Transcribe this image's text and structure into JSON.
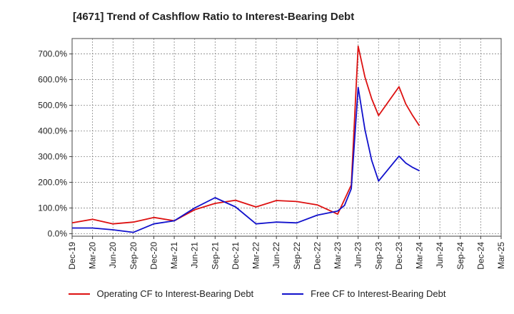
{
  "chart_data": {
    "type": "line",
    "title": "[4671]  Trend of Cashflow Ratio to Interest-Bearing Debt",
    "xlabel": "",
    "ylabel": "",
    "x_ticks": [
      "Dec-19",
      "Mar-20",
      "Jun-20",
      "Sep-20",
      "Dec-20",
      "Mar-21",
      "Jun-21",
      "Sep-21",
      "Dec-21",
      "Mar-22",
      "Jun-22",
      "Sep-22",
      "Dec-22",
      "Mar-23",
      "Jun-23",
      "Sep-23",
      "Dec-23",
      "Mar-24",
      "Jun-24",
      "Sep-24",
      "Dec-24",
      "Mar-25"
    ],
    "y_ticks": [
      "0.0%",
      "100.0%",
      "200.0%",
      "300.0%",
      "400.0%",
      "500.0%",
      "600.0%",
      "700.0%"
    ],
    "ylim": [
      -10,
      760
    ],
    "grid": true,
    "legend_position": "bottom",
    "series": [
      {
        "name": "Operating CF to Interest-Bearing Debt",
        "color": "#dd1111",
        "points": [
          [
            "Dec-19",
            42
          ],
          [
            "Mar-20",
            56
          ],
          [
            "Jun-20",
            38
          ],
          [
            "Sep-20",
            45
          ],
          [
            "Dec-20",
            63
          ],
          [
            "Mar-21",
            50
          ],
          [
            "Jun-21",
            93
          ],
          [
            "Sep-21",
            118
          ],
          [
            "Dec-21",
            130
          ],
          [
            "Mar-22",
            104
          ],
          [
            "Jun-22",
            129
          ],
          [
            "Sep-22",
            125
          ],
          [
            "Dec-22",
            112
          ],
          [
            "Mar-23",
            76
          ],
          [
            "May-23",
            190
          ],
          [
            "Jun-23",
            730
          ],
          [
            "Jul-23",
            610
          ],
          [
            "Aug-23",
            525
          ],
          [
            "Sep-23",
            460
          ],
          [
            "Dec-23",
            572
          ],
          [
            "Jan-24",
            505
          ],
          [
            "Feb-24",
            460
          ],
          [
            "Mar-24",
            420
          ]
        ]
      },
      {
        "name": "Free CF to Interest-Bearing Debt",
        "color": "#1111cc",
        "points": [
          [
            "Dec-19",
            22
          ],
          [
            "Mar-20",
            22
          ],
          [
            "Jun-20",
            15
          ],
          [
            "Sep-20",
            5
          ],
          [
            "Dec-20",
            38
          ],
          [
            "Mar-21",
            50
          ],
          [
            "Jun-21",
            100
          ],
          [
            "Sep-21",
            140
          ],
          [
            "Dec-21",
            104
          ],
          [
            "Mar-22",
            38
          ],
          [
            "Jun-22",
            45
          ],
          [
            "Sep-22",
            42
          ],
          [
            "Dec-22",
            72
          ],
          [
            "Mar-23",
            88
          ],
          [
            "Apr-23",
            110
          ],
          [
            "May-23",
            175
          ],
          [
            "Jun-23",
            570
          ],
          [
            "Jul-23",
            405
          ],
          [
            "Aug-23",
            285
          ],
          [
            "Sep-23",
            205
          ],
          [
            "Dec-23",
            302
          ],
          [
            "Jan-24",
            275
          ],
          [
            "Feb-24",
            258
          ],
          [
            "Mar-24",
            245
          ]
        ]
      }
    ]
  }
}
